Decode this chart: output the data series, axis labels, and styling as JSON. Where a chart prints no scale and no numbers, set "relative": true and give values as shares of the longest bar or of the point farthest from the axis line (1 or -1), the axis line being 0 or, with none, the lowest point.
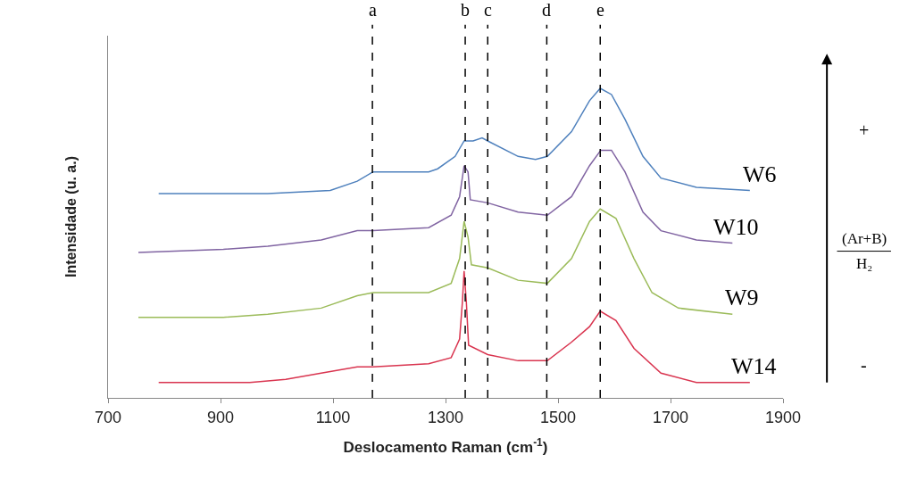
{
  "chart_data": {
    "type": "line",
    "xlabel": "Deslocamento Raman (cm$^{-1}$)",
    "ylabel": "Intensidade (u. a.)",
    "relative": true,
    "xlim": [
      700,
      1900
    ],
    "xticks": [
      700,
      900,
      1100,
      1300,
      1500,
      1700,
      1900
    ],
    "legend": false,
    "marker": "none",
    "line_style": "solid",
    "series": [
      {
        "name": "W6",
        "color": "#4f81bd",
        "x": [
          790,
          984,
          1095,
          1143,
          1171,
          1270,
          1286,
          1317,
          1333,
          1349,
          1365,
          1375,
          1429,
          1460,
          1481,
          1524,
          1556,
          1575,
          1595,
          1619,
          1651,
          1683,
          1746,
          1841
        ],
        "values": [
          0.66,
          0.66,
          0.67,
          0.7,
          0.73,
          0.73,
          0.74,
          0.78,
          0.83,
          0.83,
          0.84,
          0.83,
          0.78,
          0.77,
          0.78,
          0.86,
          0.96,
          1,
          0.98,
          0.9,
          0.78,
          0.71,
          0.68,
          0.67
        ]
      },
      {
        "name": "W10",
        "color": "#8064a2",
        "x": [
          754,
          905,
          984,
          1079,
          1143,
          1171,
          1270,
          1310,
          1325,
          1333,
          1340,
          1344,
          1375,
          1429,
          1481,
          1524,
          1556,
          1576,
          1595,
          1619,
          1651,
          1683,
          1746,
          1810
        ],
        "values": [
          0.47,
          0.48,
          0.49,
          0.51,
          0.54,
          0.54,
          0.55,
          0.59,
          0.65,
          0.75,
          0.73,
          0.64,
          0.63,
          0.6,
          0.59,
          0.65,
          0.75,
          0.8,
          0.8,
          0.73,
          0.6,
          0.54,
          0.51,
          0.5
        ]
      },
      {
        "name": "W9",
        "color": "#9bbb59",
        "x": [
          754,
          905,
          984,
          1079,
          1143,
          1171,
          1270,
          1310,
          1325,
          1333,
          1340,
          1346,
          1375,
          1429,
          1481,
          1524,
          1556,
          1575,
          1603,
          1635,
          1667,
          1714,
          1810
        ],
        "values": [
          0.26,
          0.26,
          0.27,
          0.29,
          0.33,
          0.34,
          0.34,
          0.37,
          0.45,
          0.57,
          0.52,
          0.43,
          0.42,
          0.38,
          0.37,
          0.45,
          0.57,
          0.61,
          0.58,
          0.45,
          0.34,
          0.29,
          0.27
        ]
      },
      {
        "name": "W14",
        "color": "#d9344f",
        "x": [
          790,
          952,
          1016,
          1079,
          1143,
          1171,
          1270,
          1310,
          1325,
          1330,
          1333,
          1337,
          1341,
          1375,
          1429,
          1481,
          1524,
          1556,
          1575,
          1603,
          1635,
          1683,
          1746,
          1841
        ],
        "values": [
          0.05,
          0.05,
          0.06,
          0.08,
          0.1,
          0.1,
          0.11,
          0.13,
          0.19,
          0.31,
          0.41,
          0.31,
          0.17,
          0.14,
          0.12,
          0.12,
          0.18,
          0.23,
          0.28,
          0.25,
          0.16,
          0.08,
          0.05,
          0.05
        ]
      }
    ],
    "ref_lines": [
      {
        "axis": "x",
        "value": 1170,
        "label": "a",
        "color": "#000000",
        "line_style": "dashed"
      },
      {
        "axis": "x",
        "value": 1335,
        "label": "b",
        "color": "#000000",
        "line_style": "dashed"
      },
      {
        "axis": "x",
        "value": 1375,
        "label": "c",
        "color": "#000000",
        "line_style": "dashed"
      },
      {
        "axis": "x",
        "value": 1480,
        "label": "d",
        "color": "#000000",
        "line_style": "dashed"
      },
      {
        "axis": "x",
        "value": 1575,
        "label": "e",
        "color": "#000000",
        "line_style": "dashed"
      }
    ],
    "annotations": [
      "+",
      "(Ar+B)",
      "H₂",
      "-"
    ]
  }
}
